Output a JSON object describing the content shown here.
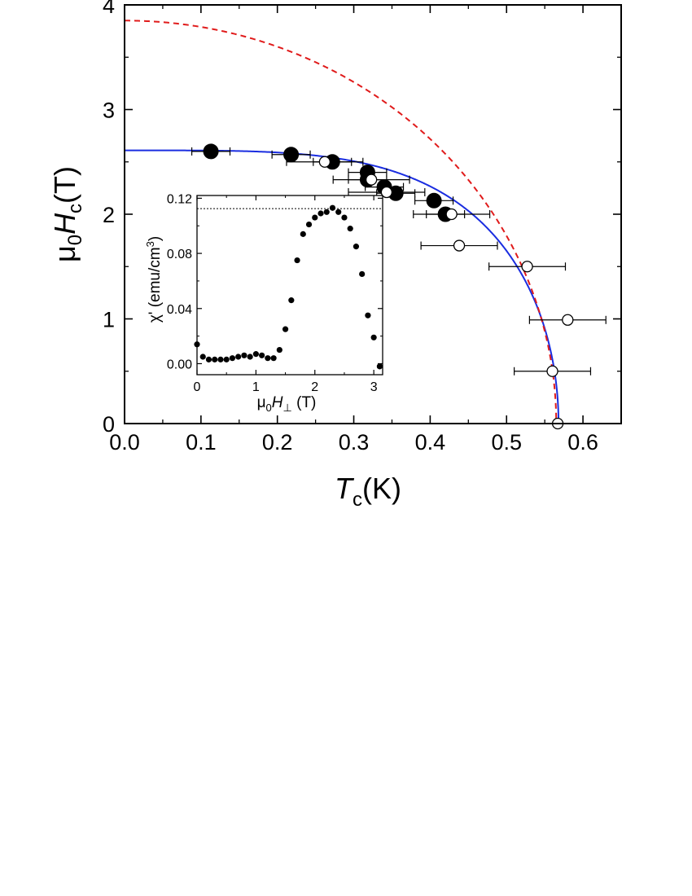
{
  "chart_data": [
    {
      "type": "scatter",
      "title": "",
      "xlabel": {
        "sym": "T",
        "sub": "c",
        "unit": "(K)"
      },
      "ylabel": {
        "pre": "μ",
        "pre_sub": "0",
        "sym": "H",
        "sub": "c",
        "unit": "(T)"
      },
      "xlim": [
        0,
        0.65
      ],
      "ylim": [
        0,
        4
      ],
      "x_ticks": [
        "0.0",
        "0.1",
        "0.2",
        "0.3",
        "0.4",
        "0.5",
        "0.6"
      ],
      "y_ticks": [
        "0",
        "1",
        "2",
        "3",
        "4"
      ],
      "grid": false,
      "legend": "none",
      "colors": {
        "solid_curve": "#1a2de0",
        "dashed_curve": "#e01b1b",
        "markers": "#000000"
      },
      "series": [
        {
          "marker": "filled-circle",
          "points": [
            {
              "x": 0.113,
              "y": 2.6,
              "xerr": 0.025
            },
            {
              "x": 0.218,
              "y": 2.57,
              "xerr": 0.025
            },
            {
              "x": 0.272,
              "y": 2.5,
              "xerr": 0.025
            },
            {
              "x": 0.318,
              "y": 2.4,
              "xerr": 0.025
            },
            {
              "x": 0.318,
              "y": 2.33,
              "xerr": 0.025
            },
            {
              "x": 0.34,
              "y": 2.26,
              "xerr": 0.025
            },
            {
              "x": 0.355,
              "y": 2.2,
              "xerr": 0.025
            },
            {
              "x": 0.405,
              "y": 2.13,
              "xerr": 0.025
            },
            {
              "x": 0.42,
              "y": 2.0,
              "xerr": 0.025
            }
          ]
        },
        {
          "marker": "open-circle",
          "points": [
            {
              "x": 0.262,
              "y": 2.5,
              "xerr": 0.05
            },
            {
              "x": 0.323,
              "y": 2.33,
              "xerr": 0.05
            },
            {
              "x": 0.343,
              "y": 2.21,
              "xerr": 0.05
            },
            {
              "x": 0.428,
              "y": 2.0,
              "xerr": 0.05
            },
            {
              "x": 0.438,
              "y": 1.7,
              "xerr": 0.05
            },
            {
              "x": 0.527,
              "y": 1.5,
              "xerr": 0.05
            },
            {
              "x": 0.58,
              "y": 0.99,
              "xerr": 0.05
            },
            {
              "x": 0.56,
              "y": 0.5,
              "xerr": 0.05
            },
            {
              "x": 0.567,
              "y": 0.0,
              "xerr": 0.0
            }
          ]
        }
      ],
      "curves": [
        {
          "style": "solid",
          "color": "#1a2de0",
          "Tc": 0.568,
          "H0": 2.61,
          "form": "H0*sqrt(1-(T/Tc)^4)"
        },
        {
          "style": "dashed",
          "color": "#e01b1b",
          "Tc": 0.565,
          "H0": 3.85,
          "form": "H0*sqrt(1-(T/Tc)^2)"
        }
      ]
    },
    {
      "type": "scatter",
      "title": "",
      "inset": true,
      "xlabel": {
        "pre": "μ",
        "pre_sub": "0",
        "sym": "H",
        "sub": "⊥",
        "unit": " (T)"
      },
      "ylabel": {
        "text": "χ' (emu/cm",
        "sup": "3",
        "end": ")"
      },
      "xlim": [
        0,
        3.15
      ],
      "ylim": [
        -0.008,
        0.122
      ],
      "x_ticks": [
        "0",
        "1",
        "2",
        "3"
      ],
      "y_ticks": [
        "0.00",
        "0.04",
        "0.08",
        "0.12"
      ],
      "reference_line": {
        "y": 0.1125,
        "style": "dotted"
      },
      "grid": false,
      "legend": "none",
      "series": [
        {
          "marker": "filled-circle",
          "x": [
            0.0,
            0.1,
            0.2,
            0.3,
            0.4,
            0.5,
            0.6,
            0.7,
            0.8,
            0.9,
            1.0,
            1.1,
            1.2,
            1.3,
            1.4,
            1.5,
            1.6,
            1.7,
            1.8,
            1.9,
            2.0,
            2.1,
            2.2,
            2.3,
            2.4,
            2.5,
            2.6,
            2.7,
            2.8,
            2.9,
            3.0,
            3.1
          ],
          "y": [
            0.014,
            0.005,
            0.003,
            0.003,
            0.003,
            0.003,
            0.004,
            0.005,
            0.006,
            0.005,
            0.007,
            0.006,
            0.004,
            0.004,
            0.01,
            0.025,
            0.046,
            0.075,
            0.094,
            0.101,
            0.106,
            0.109,
            0.11,
            0.113,
            0.11,
            0.106,
            0.098,
            0.085,
            0.065,
            0.035,
            0.019,
            -0.002
          ]
        }
      ]
    }
  ]
}
